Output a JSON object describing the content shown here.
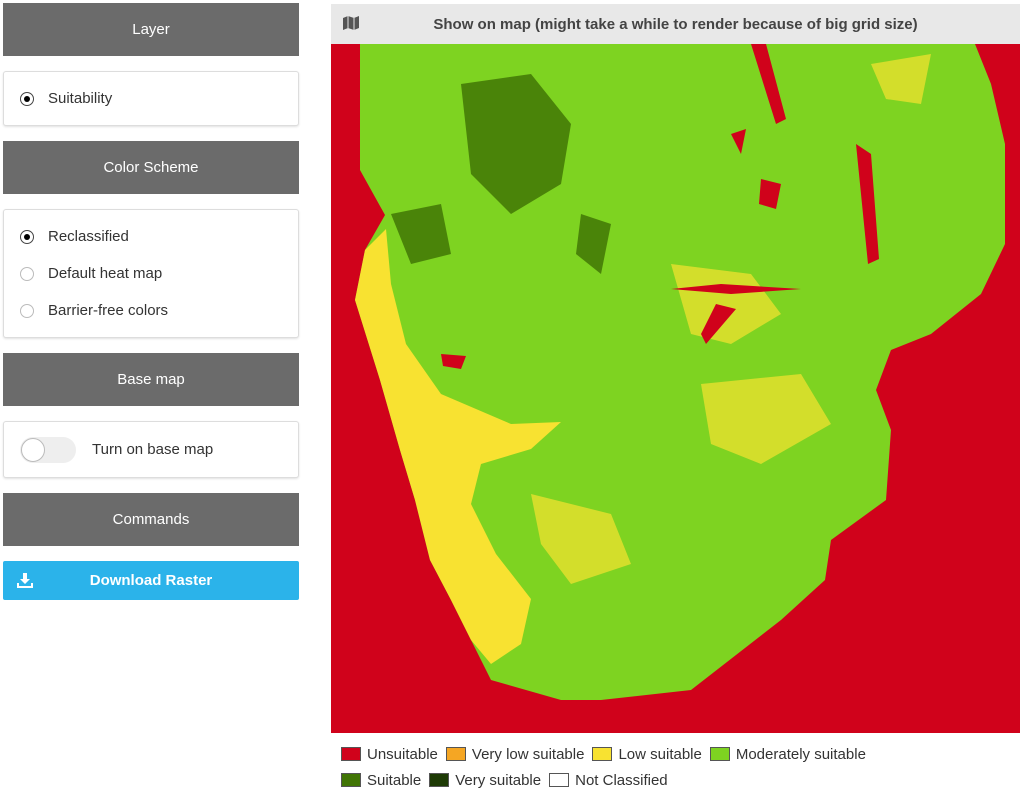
{
  "sidebar": {
    "sections": [
      {
        "title": "Layer",
        "options": [
          {
            "label": "Suitability",
            "selected": true
          }
        ]
      },
      {
        "title": "Color Scheme",
        "options": [
          {
            "label": "Reclassified",
            "selected": true
          },
          {
            "label": "Default heat map",
            "selected": false
          },
          {
            "label": "Barrier-free colors",
            "selected": false
          }
        ]
      },
      {
        "title": "Base map",
        "toggle": {
          "label": "Turn on base map",
          "on": false
        }
      },
      {
        "title": "Commands",
        "button": "Download Raster"
      }
    ]
  },
  "map": {
    "header": "Show on map (might take a while to render because of big grid size)",
    "legend": [
      {
        "label": "Unsuitable",
        "color": "#d0021b"
      },
      {
        "label": "Very low suitable",
        "color": "#f5a623"
      },
      {
        "label": "Low suitable",
        "color": "#f8e231"
      },
      {
        "label": "Moderately suitable",
        "color": "#7ed321"
      },
      {
        "label": "Suitable",
        "color": "#417505"
      },
      {
        "label": "Very suitable",
        "color": "#1e3a05"
      },
      {
        "label": "Not Classified",
        "color": "#ffffff"
      }
    ]
  }
}
